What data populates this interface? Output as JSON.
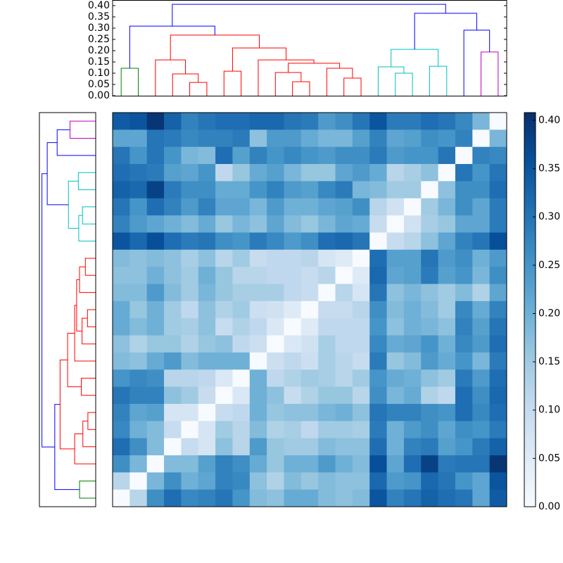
{
  "chart_data": {
    "type": "clustered_heatmap",
    "cmap": "Blues",
    "clim": [
      0,
      0.408
    ],
    "cbar_ticks": [
      {
        "value": 0,
        "label": "0.00"
      },
      {
        "value": 0.05,
        "label": "0.05"
      },
      {
        "value": 0.1,
        "label": "0.10"
      },
      {
        "value": 0.15,
        "label": "0.15"
      },
      {
        "value": 0.2,
        "label": "0.20"
      },
      {
        "value": 0.25,
        "label": "0.25"
      },
      {
        "value": 0.3,
        "label": "0.30"
      },
      {
        "value": 0.35,
        "label": "0.35"
      },
      {
        "value": 0.4,
        "label": "0.40"
      }
    ],
    "dendrogram_lim": [
      0,
      0.425
    ],
    "dendrogram_ticks": [
      {
        "value": 0,
        "label": "0.00"
      },
      {
        "value": 0.05,
        "label": "0.05"
      },
      {
        "value": 0.1,
        "label": "0.10"
      },
      {
        "value": 0.15,
        "label": "0.15"
      },
      {
        "value": 0.2,
        "label": "0.20"
      },
      {
        "value": 0.25,
        "label": "0.25"
      },
      {
        "value": 0.3,
        "label": "0.30"
      },
      {
        "value": 0.35,
        "label": "0.35"
      },
      {
        "value": 0.4,
        "label": "0.40"
      }
    ],
    "links": [
      {
        "left": 0,
        "right": 1,
        "left_h": 0,
        "right_h": 0,
        "height": 0.122,
        "color": "#008000"
      },
      {
        "left": 4,
        "right": 5,
        "left_h": 0,
        "right_h": 0,
        "height": 0.059,
        "color": "#ff0000"
      },
      {
        "left": 3,
        "right": 4.5,
        "left_h": 0,
        "right_h": 0.059,
        "height": 0.097,
        "color": "#ff0000"
      },
      {
        "left": 2,
        "right": 3.75,
        "left_h": 0,
        "right_h": 0.097,
        "height": 0.159,
        "color": "#ff0000"
      },
      {
        "left": 6,
        "right": 7,
        "left_h": 0,
        "right_h": 0,
        "height": 0.109,
        "color": "#ff0000"
      },
      {
        "left": 10,
        "right": 11,
        "left_h": 0,
        "right_h": 0,
        "height": 0.062,
        "color": "#ff0000"
      },
      {
        "left": 9,
        "right": 10.5,
        "left_h": 0,
        "right_h": 0.062,
        "height": 0.103,
        "color": "#ff0000"
      },
      {
        "left": 13,
        "right": 14,
        "left_h": 0,
        "right_h": 0,
        "height": 0.078,
        "color": "#ff0000"
      },
      {
        "left": 12,
        "right": 13.5,
        "left_h": 0,
        "right_h": 0.078,
        "height": 0.122,
        "color": "#ff0000"
      },
      {
        "left": 9.75,
        "right": 12.75,
        "left_h": 0.103,
        "right_h": 0.122,
        "height": 0.144,
        "color": "#ff0000"
      },
      {
        "left": 8,
        "right": 11.25,
        "left_h": 0,
        "right_h": 0.144,
        "height": 0.159,
        "color": "#ff0000"
      },
      {
        "left": 6.5,
        "right": 9.625,
        "left_h": 0.109,
        "right_h": 0.159,
        "height": 0.212,
        "color": "#ff0000"
      },
      {
        "left": 2.875,
        "right": 8.0625,
        "left_h": 0.159,
        "right_h": 0.212,
        "height": 0.269,
        "color": "#ff0000"
      },
      {
        "left": 0.5,
        "right": 5.469,
        "left_h": 0.122,
        "right_h": 0.269,
        "height": 0.309,
        "color": "#0000ff"
      },
      {
        "left": 16,
        "right": 17,
        "left_h": 0,
        "right_h": 0,
        "height": 0.1,
        "color": "#00bfbf"
      },
      {
        "left": 15,
        "right": 16.5,
        "left_h": 0,
        "right_h": 0.1,
        "height": 0.128,
        "color": "#00bfbf"
      },
      {
        "left": 18,
        "right": 19,
        "left_h": 0,
        "right_h": 0,
        "height": 0.131,
        "color": "#00bfbf"
      },
      {
        "left": 15.75,
        "right": 18.5,
        "left_h": 0.128,
        "right_h": 0.131,
        "height": 0.206,
        "color": "#00bfbf"
      },
      {
        "left": 21,
        "right": 22,
        "left_h": 0,
        "right_h": 0,
        "height": 0.194,
        "color": "#bf00bf"
      },
      {
        "left": 20,
        "right": 21.5,
        "left_h": 0,
        "right_h": 0.194,
        "height": 0.291,
        "color": "#0000ff"
      },
      {
        "left": 17.125,
        "right": 20.75,
        "left_h": 0.206,
        "right_h": 0.291,
        "height": 0.366,
        "color": "#0000ff"
      },
      {
        "left": 2.984,
        "right": 18.9375,
        "left_h": 0.309,
        "right_h": 0.366,
        "height": 0.406,
        "color": "#0000ff"
      }
    ],
    "z": [
      [
        0.34,
        0.35,
        0.4,
        0.33,
        0.28,
        0.3,
        0.31,
        0.31,
        0.32,
        0.32,
        0.3,
        0.29,
        0.24,
        0.26,
        0.3,
        0.35,
        0.29,
        0.29,
        0.31,
        0.3,
        0.27,
        0.19,
        0
      ],
      [
        0.22,
        0.22,
        0.3,
        0.29,
        0.27,
        0.28,
        0.28,
        0.29,
        0.17,
        0.24,
        0.24,
        0.21,
        0.19,
        0.19,
        0.23,
        0.28,
        0.22,
        0.23,
        0.26,
        0.25,
        0.28,
        0,
        0.19
      ],
      [
        0.3,
        0.25,
        0.3,
        0.25,
        0.19,
        0.18,
        0.31,
        0.23,
        0.28,
        0.25,
        0.27,
        0.25,
        0.24,
        0.26,
        0.26,
        0.29,
        0.24,
        0.25,
        0.25,
        0.3,
        0,
        0.28,
        0.27
      ],
      [
        0.31,
        0.3,
        0.29,
        0.23,
        0.22,
        0.25,
        0.11,
        0.16,
        0.21,
        0.23,
        0.19,
        0.16,
        0.16,
        0.22,
        0.24,
        0.21,
        0.12,
        0.14,
        0.17,
        0,
        0.3,
        0.25,
        0.3
      ],
      [
        0.33,
        0.32,
        0.38,
        0.29,
        0.26,
        0.26,
        0.21,
        0.21,
        0.25,
        0.28,
        0.24,
        0.23,
        0.27,
        0.29,
        0.19,
        0.18,
        0.15,
        0.15,
        0,
        0.17,
        0.26,
        0.26,
        0.31
      ],
      [
        0.3,
        0.25,
        0.31,
        0.28,
        0.24,
        0.28,
        0.22,
        0.22,
        0.19,
        0.24,
        0.2,
        0.2,
        0.22,
        0.23,
        0.26,
        0.12,
        0.08,
        0,
        0.15,
        0.19,
        0.26,
        0.22,
        0.29
      ],
      [
        0.28,
        0.24,
        0.22,
        0.2,
        0.18,
        0.21,
        0.16,
        0.19,
        0.17,
        0.22,
        0.18,
        0.16,
        0.19,
        0.22,
        0.21,
        0.1,
        0,
        0.08,
        0.14,
        0.16,
        0.22,
        0.22,
        0.29
      ],
      [
        0.35,
        0.32,
        0.36,
        0.31,
        0.29,
        0.3,
        0.26,
        0.25,
        0.29,
        0.27,
        0.24,
        0.26,
        0.31,
        0.32,
        0.3,
        0,
        0.1,
        0.12,
        0.17,
        0.22,
        0.28,
        0.3,
        0.36
      ],
      [
        0.18,
        0.17,
        0.18,
        0.17,
        0.14,
        0.17,
        0.12,
        0.15,
        0.1,
        0.11,
        0.11,
        0.12,
        0.07,
        0.05,
        0,
        0.31,
        0.23,
        0.23,
        0.3,
        0.24,
        0.26,
        0.2,
        0.24
      ],
      [
        0.17,
        0.17,
        0.2,
        0.17,
        0.15,
        0.2,
        0.16,
        0.12,
        0.12,
        0.11,
        0.11,
        0.1,
        0.12,
        0,
        0.05,
        0.32,
        0.22,
        0.23,
        0.29,
        0.23,
        0.25,
        0.19,
        0.26
      ],
      [
        0.18,
        0.18,
        0.24,
        0.18,
        0.15,
        0.19,
        0.16,
        0.14,
        0.14,
        0.14,
        0.11,
        0.1,
        0,
        0.12,
        0.07,
        0.3,
        0.17,
        0.19,
        0.17,
        0.15,
        0.18,
        0.13,
        0.22
      ],
      [
        0.21,
        0.16,
        0.2,
        0.15,
        0.11,
        0.17,
        0.13,
        0.15,
        0.09,
        0.08,
        0.05,
        0,
        0.1,
        0.1,
        0.12,
        0.26,
        0.18,
        0.2,
        0.18,
        0.15,
        0.27,
        0.21,
        0.28
      ],
      [
        0.21,
        0.18,
        0.2,
        0.15,
        0.14,
        0.17,
        0.1,
        0.13,
        0.11,
        0.06,
        0,
        0.05,
        0.11,
        0.11,
        0.11,
        0.25,
        0.17,
        0.2,
        0.19,
        0.17,
        0.28,
        0.23,
        0.3
      ],
      [
        0.17,
        0.13,
        0.16,
        0.16,
        0.13,
        0.16,
        0.17,
        0.11,
        0.09,
        0,
        0.06,
        0.08,
        0.14,
        0.11,
        0.11,
        0.27,
        0.21,
        0.22,
        0.25,
        0.2,
        0.27,
        0.24,
        0.31
      ],
      [
        0.18,
        0.17,
        0.21,
        0.24,
        0.18,
        0.2,
        0.2,
        0.2,
        0,
        0.09,
        0.11,
        0.09,
        0.14,
        0.12,
        0.1,
        0.29,
        0.16,
        0.18,
        0.24,
        0.21,
        0.25,
        0.19,
        0.29
      ],
      [
        0.25,
        0.27,
        0.26,
        0.12,
        0.12,
        0.11,
        0.06,
        0,
        0.2,
        0.11,
        0.13,
        0.15,
        0.14,
        0.12,
        0.15,
        0.25,
        0.21,
        0.2,
        0.17,
        0.15,
        0.29,
        0.24,
        0.31
      ],
      [
        0.3,
        0.28,
        0.28,
        0.17,
        0.15,
        0.1,
        0,
        0.06,
        0.2,
        0.17,
        0.1,
        0.13,
        0.16,
        0.16,
        0.12,
        0.26,
        0.19,
        0.21,
        0.13,
        0.11,
        0.31,
        0.26,
        0.32
      ],
      [
        0.28,
        0.22,
        0.23,
        0.07,
        0.07,
        0,
        0.1,
        0.11,
        0.2,
        0.16,
        0.17,
        0.17,
        0.19,
        0.2,
        0.17,
        0.3,
        0.28,
        0.28,
        0.26,
        0.25,
        0.31,
        0.27,
        0.31
      ],
      [
        0.27,
        0.2,
        0.18,
        0.1,
        0,
        0.07,
        0.15,
        0.12,
        0.18,
        0.13,
        0.14,
        0.11,
        0.15,
        0.15,
        0.14,
        0.29,
        0.2,
        0.24,
        0.26,
        0.22,
        0.26,
        0.25,
        0.29
      ],
      [
        0.31,
        0.26,
        0.18,
        0,
        0.1,
        0.07,
        0.17,
        0.12,
        0.24,
        0.16,
        0.15,
        0.15,
        0.18,
        0.17,
        0.17,
        0.31,
        0.2,
        0.28,
        0.29,
        0.23,
        0.25,
        0.29,
        0.33
      ],
      [
        0.26,
        0.19,
        0,
        0.18,
        0.18,
        0.23,
        0.28,
        0.26,
        0.21,
        0.16,
        0.2,
        0.2,
        0.24,
        0.2,
        0.18,
        0.36,
        0.22,
        0.31,
        0.38,
        0.29,
        0.3,
        0.3,
        0.4
      ],
      [
        0.12,
        0,
        0.19,
        0.26,
        0.2,
        0.22,
        0.28,
        0.27,
        0.17,
        0.13,
        0.18,
        0.16,
        0.18,
        0.17,
        0.17,
        0.32,
        0.24,
        0.25,
        0.32,
        0.3,
        0.25,
        0.22,
        0.35
      ],
      [
        0,
        0.12,
        0.26,
        0.31,
        0.27,
        0.28,
        0.3,
        0.25,
        0.18,
        0.17,
        0.21,
        0.21,
        0.18,
        0.17,
        0.18,
        0.35,
        0.28,
        0.3,
        0.33,
        0.31,
        0.3,
        0.22,
        0.34
      ]
    ]
  }
}
